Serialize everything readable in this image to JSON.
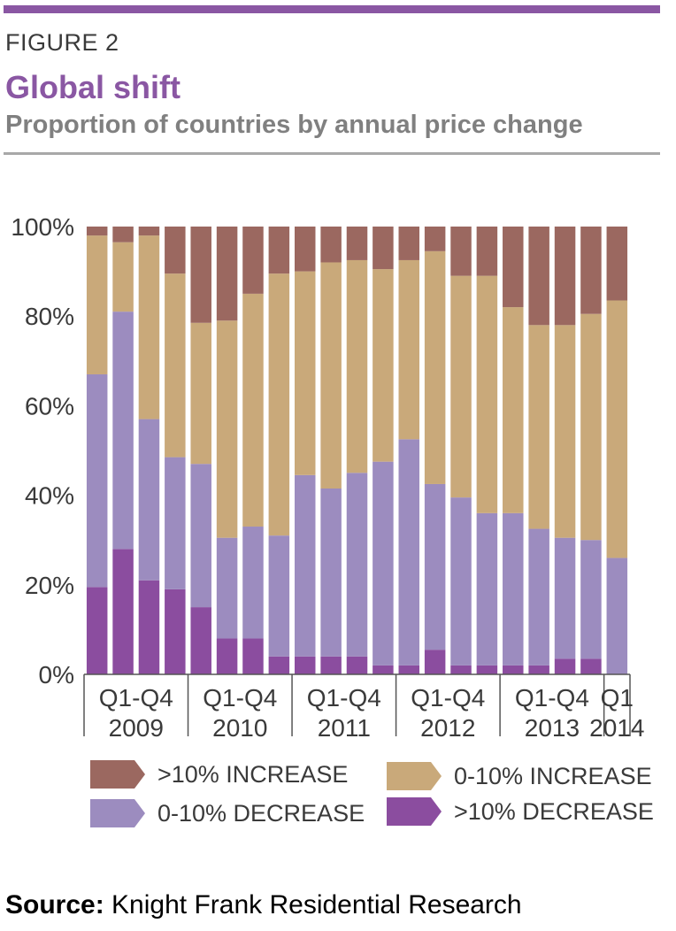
{
  "figure_label": "FIGURE 2",
  "title": "Global shift",
  "subtitle": "Proportion of countries by annual price change",
  "source_label": "Source:",
  "source_text": "Knight Frank Residential Research",
  "colors": {
    "accent": "#8a57a3",
    "gt10_increase": "#9b6860",
    "inc_0_10": "#c9a97a",
    "dec_0_10": "#9c8cbf",
    "gt10_decrease": "#8b4d9f"
  },
  "legend": [
    {
      "label": ">10% INCREASE",
      "color": "#9b6860"
    },
    {
      "label": "0-10% INCREASE",
      "color": "#c9a97a"
    },
    {
      "label": "0-10% DECREASE",
      "color": "#9c8cbf"
    },
    {
      "label": ">10% DECREASE",
      "color": "#8b4d9f"
    }
  ],
  "chart_data": {
    "type": "bar",
    "stacked": true,
    "y_ticks": [
      "0%",
      "20%",
      "40%",
      "60%",
      "80%",
      "100%"
    ],
    "ylim": [
      0,
      100
    ],
    "groups": [
      {
        "line1": "Q1-Q4",
        "line2": "2009"
      },
      {
        "line1": "Q1-Q4",
        "line2": "2010"
      },
      {
        "line1": "Q1-Q4",
        "line2": "2011"
      },
      {
        "line1": "Q1-Q4",
        "line2": "2012"
      },
      {
        "line1": "Q1-Q4",
        "line2": "2013"
      },
      {
        "line1": "Q1",
        "line2": "2014"
      }
    ],
    "categories": [
      "Q1 2009",
      "Q2 2009",
      "Q3 2009",
      "Q4 2009",
      "Q1 2010",
      "Q2 2010",
      "Q3 2010",
      "Q4 2010",
      "Q1 2011",
      "Q2 2011",
      "Q3 2011",
      "Q4 2011",
      "Q1 2012",
      "Q2 2012",
      "Q3 2012",
      "Q4 2012",
      "Q1 2013",
      "Q2 2013",
      "Q3 2013",
      "Q4 2013",
      "Q1 2014"
    ],
    "series": [
      {
        "name": ">10% DECREASE",
        "color": "#8b4d9f",
        "values": [
          19.5,
          28,
          21,
          19,
          15,
          8,
          8,
          4,
          4,
          4,
          4,
          2,
          2,
          5.5,
          2,
          2,
          2,
          2,
          3.5,
          3.5,
          0
        ]
      },
      {
        "name": "0-10% DECREASE",
        "color": "#9c8cbf",
        "values": [
          47.5,
          53,
          36,
          29.5,
          32,
          22.5,
          25,
          27,
          40.5,
          37.5,
          41,
          45.5,
          50.5,
          37,
          37.5,
          34,
          34,
          30.5,
          27,
          26.5,
          26
        ]
      },
      {
        "name": "0-10% INCREASE",
        "color": "#c9a97a",
        "values": [
          31,
          15.5,
          41,
          41,
          31.5,
          48.5,
          52,
          58.5,
          45.5,
          50.5,
          47.5,
          43,
          40,
          52,
          49.5,
          53,
          46,
          45.5,
          47.5,
          50.5,
          57.5
        ]
      },
      {
        "name": ">10% INCREASE",
        "color": "#9b6860",
        "values": [
          2,
          3.5,
          2,
          10.5,
          21.5,
          21,
          15,
          10.5,
          10,
          8,
          7.5,
          9.5,
          7.5,
          5.5,
          11,
          11,
          18,
          22,
          22,
          19.5,
          16.5
        ]
      }
    ]
  }
}
